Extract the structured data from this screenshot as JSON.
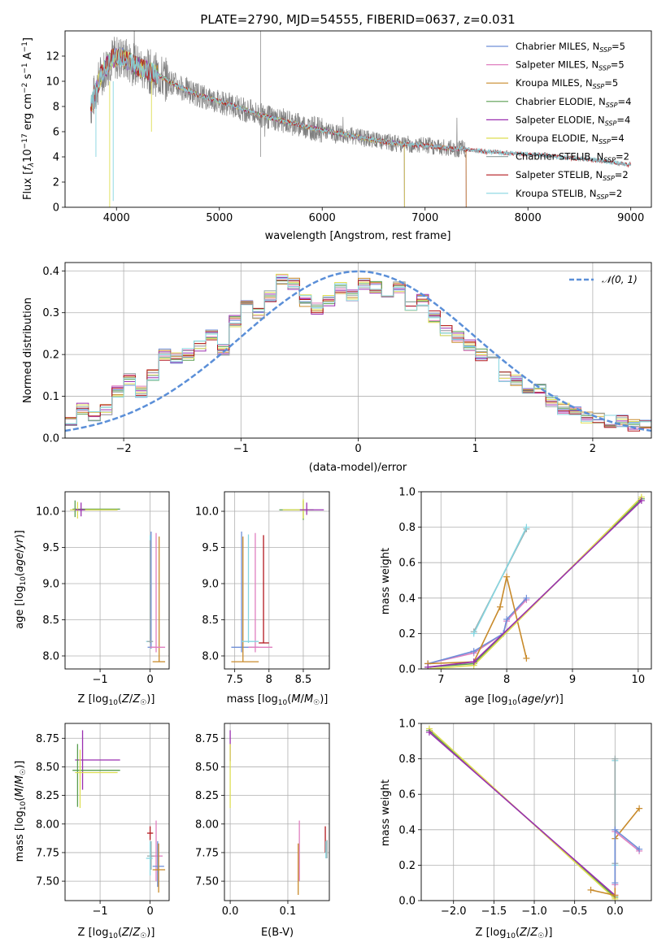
{
  "figure_title": "PLATE=2790, MJD=54555, FIBERID=0637, z=0.031",
  "palette": {
    "Chabrier MILES": "#6f8fd8",
    "Salpeter MILES": "#e07fbf",
    "Kroupa MILES": "#c88a2a",
    "Chabrier ELODIE": "#5a9e50",
    "Salpeter ELODIE": "#9a2fb0",
    "Kroupa ELODIE": "#dede52",
    "Chabrier STELIB": "#9aa8a8",
    "Salpeter STELIB": "#b3191f",
    "Kroupa STELIB": "#86d5e0",
    "data": "#808080",
    "gaussian": "#5b8fd8"
  },
  "chart_data": [
    {
      "id": "spectrum",
      "type": "line",
      "xlabel": "wavelength [Angstrom, rest frame]",
      "xlim": [
        3500,
        9200
      ],
      "ylim": [
        0,
        14
      ],
      "xticks": [
        4000,
        5000,
        6000,
        7000,
        8000,
        9000
      ],
      "yticks": [
        0,
        2,
        4,
        6,
        8,
        10,
        12
      ],
      "grid": false,
      "legend_position": "top-right",
      "legend": [
        "Chabrier MILES, N_SSP=5",
        "Salpeter MILES, N_SSP=5",
        "Kroupa MILES, N_SSP=5",
        "Chabrier ELODIE, N_SSP=4",
        "Salpeter ELODIE, N_SSP=4",
        "Kroupa ELODIE, N_SSP=4",
        "Chabrier STELIB, N_SSP=2",
        "Salpeter STELIB, N_SSP=2",
        "Kroupa STELIB, N_SSP=2"
      ],
      "data_continuum": {
        "x": [
          3750,
          3850,
          3950,
          4050,
          4200,
          4400,
          4600,
          4800,
          5000,
          5200,
          5400,
          5600,
          5800,
          6000,
          6200,
          6400,
          6600,
          6800,
          7000,
          7200,
          7400,
          7600,
          7800,
          8000,
          8200,
          8400,
          8600,
          8800,
          8950
        ],
        "y": [
          8.0,
          10.5,
          11.8,
          11.9,
          11.2,
          10.5,
          9.6,
          8.9,
          8.4,
          7.9,
          7.3,
          6.9,
          6.5,
          6.1,
          5.8,
          5.5,
          5.2,
          5.0,
          4.9,
          4.7,
          4.6,
          4.4,
          4.3,
          4.2,
          4.1,
          3.9,
          3.8,
          3.6,
          3.4
        ]
      },
      "model_end_wavelength": {
        "MILES": 7400,
        "ELODIE": 6800,
        "STELIB": 9000
      }
    },
    {
      "id": "residuals",
      "type": "line",
      "xlabel": "(data-model)/error",
      "ylabel": "Normed distribution",
      "xlim": [
        -2.5,
        2.5
      ],
      "ylim": [
        0,
        0.42
      ],
      "xticks": [
        -2,
        -1,
        0,
        1,
        2
      ],
      "yticks": [
        0.0,
        0.1,
        0.2,
        0.3,
        0.4
      ],
      "grid": true,
      "legend": "𝒩(0, 1)",
      "legend_position": "top-right",
      "bin_width": 0.1,
      "bin_start": -2.5,
      "hist_base": [
        0.04,
        0.03,
        0.07,
        0.03,
        0.05,
        0.08,
        0.07,
        0.1,
        0.11,
        0.09,
        0.14,
        0.13,
        0.11,
        0.18,
        0.15,
        0.18,
        0.2,
        0.17,
        0.19,
        0.23,
        0.2,
        0.26,
        0.22,
        0.28,
        0.25,
        0.27,
        0.21,
        0.29,
        0.28,
        0.23,
        0.33,
        0.26,
        0.3,
        0.29,
        0.34,
        0.31,
        0.38,
        0.32,
        0.37,
        0.33,
        0.33,
        0.36,
        0.31,
        0.39,
        0.33,
        0.38,
        0.36,
        0.36,
        0.34,
        0.35,
        0.37,
        0.32,
        0.36,
        0.34,
        0.33,
        0.29,
        0.36,
        0.3,
        0.32,
        0.31,
        0.33,
        0.25,
        0.29,
        0.31,
        0.26,
        0.3,
        0.24,
        0.28,
        0.22,
        0.23,
        0.2,
        0.23,
        0.18,
        0.19,
        0.15,
        0.17,
        0.14,
        0.19,
        0.11,
        0.14,
        0.12,
        0.13,
        0.09,
        0.13,
        0.07,
        0.09,
        0.06,
        0.1,
        0.05,
        0.09,
        0.05,
        0.08,
        0.04,
        0.07,
        0.04,
        0.06,
        0.03,
        0.05,
        0.03,
        0.04
      ]
    },
    {
      "id": "age_vs_Z",
      "type": "scatter",
      "xlabel": "Z [log10(Z/Z☉)]",
      "ylabel": "age  [log10(age/yr)]",
      "xlim": [
        -1.7,
        0.38
      ],
      "ylim": [
        7.82,
        10.27
      ],
      "xticks": [
        -1,
        0
      ],
      "yticks": [
        8.0,
        8.5,
        9.0,
        9.5,
        10.0
      ],
      "grid": true,
      "crosses": [
        {
          "s": "Chabrier ELODIE",
          "x": -1.5,
          "y": 10.03,
          "xe": [
            -1.55,
            -0.6
          ],
          "ye": [
            9.92,
            10.15
          ]
        },
        {
          "s": "Kroupa ELODIE",
          "x": -1.45,
          "y": 10.02,
          "xe": [
            -1.6,
            -0.65
          ],
          "ye": [
            9.9,
            10.13
          ]
        },
        {
          "s": "Salpeter ELODIE",
          "x": -1.38,
          "y": 10.02,
          "xe": [
            -1.5,
            -1.3
          ],
          "ye": [
            9.93,
            10.12
          ]
        },
        {
          "s": "Chabrier MILES",
          "x": 0.02,
          "y": 8.12,
          "xe": [
            -0.05,
            0.12
          ],
          "ye": [
            8.1,
            9.72
          ]
        },
        {
          "s": "Kroupa MILES",
          "x": 0.18,
          "y": 7.92,
          "xe": [
            0.05,
            0.3
          ],
          "ye": [
            7.92,
            9.65
          ]
        },
        {
          "s": "Salpeter MILES",
          "x": 0.12,
          "y": 8.12,
          "xe": [
            0.0,
            0.3
          ],
          "ye": [
            8.05,
            9.7
          ]
        },
        {
          "s": "Kroupa STELIB",
          "x": 0.0,
          "y": 8.2,
          "xe": [
            -0.08,
            0.05
          ],
          "ye": [
            8.18,
            9.67
          ]
        },
        {
          "s": "Chabrier STELIB",
          "x": 0.0,
          "y": 8.2,
          "xe": [
            -0.06,
            0.06
          ],
          "ye": [
            8.18,
            9.6
          ]
        }
      ]
    },
    {
      "id": "age_vs_mass",
      "type": "scatter",
      "xlabel": "mass [log10(M/M☉)]",
      "xlim": [
        7.35,
        8.88
      ],
      "ylim": [
        7.82,
        10.27
      ],
      "xticks": [
        7.5,
        8.0,
        8.5
      ],
      "yticks": [
        8.0,
        8.5,
        9.0,
        9.5,
        10.0
      ],
      "grid": true,
      "crosses": [
        {
          "s": "Chabrier ELODIE",
          "x": 8.5,
          "y": 10.02,
          "xe": [
            8.15,
            8.65
          ],
          "ye": [
            9.88,
            10.15
          ]
        },
        {
          "s": "Kroupa ELODIE",
          "x": 8.5,
          "y": 10.02,
          "xe": [
            8.2,
            8.6
          ],
          "ye": [
            9.9,
            10.17
          ]
        },
        {
          "s": "Salpeter ELODIE",
          "x": 8.55,
          "y": 10.02,
          "xe": [
            8.45,
            8.8
          ],
          "ye": [
            9.95,
            10.12
          ]
        },
        {
          "s": "Chabrier MILES",
          "x": 7.6,
          "y": 8.12,
          "xe": [
            7.45,
            7.85
          ],
          "ye": [
            8.05,
            9.72
          ]
        },
        {
          "s": "Kroupa MILES",
          "x": 7.62,
          "y": 7.92,
          "xe": [
            7.45,
            7.85
          ],
          "ye": [
            7.92,
            9.65
          ]
        },
        {
          "s": "Salpeter STELIB",
          "x": 7.92,
          "y": 8.18,
          "xe": [
            7.85,
            8.0
          ],
          "ye": [
            8.18,
            9.67
          ]
        },
        {
          "s": "Salpeter MILES",
          "x": 7.8,
          "y": 8.12,
          "xe": [
            7.7,
            8.05
          ],
          "ye": [
            8.05,
            9.7
          ]
        },
        {
          "s": "Kroupa STELIB",
          "x": 7.7,
          "y": 8.2,
          "xe": [
            7.6,
            7.85
          ],
          "ye": [
            8.18,
            9.68
          ]
        }
      ]
    },
    {
      "id": "weight_vs_age",
      "type": "line",
      "xlabel": "age  [log10(age/yr)]",
      "ylabel": "mass weight",
      "xlim": [
        6.7,
        10.2
      ],
      "ylim": [
        0,
        1
      ],
      "xticks": [
        7,
        8,
        9,
        10
      ],
      "yticks": [
        0.0,
        0.2,
        0.4,
        0.6,
        0.8,
        1.0
      ],
      "grid": true,
      "series": [
        {
          "s": "Chabrier STELIB",
          "x": [
            7.5,
            8.3
          ],
          "y": [
            0.21,
            0.79
          ]
        },
        {
          "s": "Kroupa STELIB",
          "x": [
            7.5,
            8.3
          ],
          "y": [
            0.2,
            0.8
          ]
        },
        {
          "s": "Salpeter MILES",
          "x": [
            6.8,
            7.5,
            7.95,
            8.0,
            8.3
          ],
          "y": [
            0.03,
            0.09,
            0.2,
            0.27,
            0.39
          ]
        },
        {
          "s": "Chabrier MILES",
          "x": [
            6.8,
            7.5,
            7.95,
            8.0,
            8.3
          ],
          "y": [
            0.03,
            0.1,
            0.2,
            0.28,
            0.4
          ]
        },
        {
          "s": "Kroupa MILES",
          "x": [
            6.8,
            7.5,
            7.9,
            8.0,
            8.3
          ],
          "y": [
            0.03,
            0.04,
            0.35,
            0.52,
            0.06
          ]
        },
        {
          "s": "Chabrier ELODIE",
          "x": [
            6.8,
            7.5,
            10.05
          ],
          "y": [
            0.01,
            0.03,
            0.96
          ]
        },
        {
          "s": "Kroupa ELODIE",
          "x": [
            6.8,
            7.5,
            10.05
          ],
          "y": [
            0.0,
            0.02,
            0.97
          ]
        },
        {
          "s": "Salpeter ELODIE",
          "x": [
            6.8,
            7.5,
            10.05
          ],
          "y": [
            0.01,
            0.04,
            0.95
          ]
        }
      ]
    },
    {
      "id": "mass_vs_Z",
      "type": "scatter",
      "xlabel": "Z [log10(Z/Z☉)]",
      "ylabel": "mass [log10(M/M☉)]",
      "xlim": [
        -1.7,
        0.38
      ],
      "ylim": [
        7.33,
        8.88
      ],
      "xticks": [
        -1,
        0
      ],
      "yticks": [
        7.5,
        7.75,
        8.0,
        8.25,
        8.5,
        8.75
      ],
      "grid": true,
      "crosses": [
        {
          "s": "Salpeter ELODIE",
          "x": -1.35,
          "y": 8.56,
          "xe": [
            -1.5,
            -0.6
          ],
          "ye": [
            8.3,
            8.82
          ]
        },
        {
          "s": "Chabrier ELODIE",
          "x": -1.45,
          "y": 8.47,
          "xe": [
            -1.55,
            -0.6
          ],
          "ye": [
            8.15,
            8.7
          ]
        },
        {
          "s": "Kroupa ELODIE",
          "x": -1.4,
          "y": 8.45,
          "xe": [
            -1.5,
            -0.65
          ],
          "ye": [
            8.14,
            8.65
          ]
        },
        {
          "s": "Salpeter STELIB",
          "x": 0.0,
          "y": 7.92,
          "xe": [
            -0.06,
            0.06
          ],
          "ye": [
            7.86,
            7.98
          ]
        },
        {
          "s": "Salpeter MILES",
          "x": 0.12,
          "y": 7.72,
          "xe": [
            0.0,
            0.25
          ],
          "ye": [
            7.5,
            8.03
          ]
        },
        {
          "s": "Chabrier STELIB",
          "x": 0.02,
          "y": 7.72,
          "xe": [
            -0.06,
            0.08
          ],
          "ye": [
            7.6,
            7.85
          ]
        },
        {
          "s": "Kroupa STELIB",
          "x": 0.0,
          "y": 7.7,
          "xe": [
            -0.08,
            0.05
          ],
          "ye": [
            7.55,
            7.85
          ]
        },
        {
          "s": "Chabrier MILES",
          "x": 0.15,
          "y": 7.63,
          "xe": [
            0.05,
            0.28
          ],
          "ye": [
            7.45,
            7.85
          ]
        },
        {
          "s": "Kroupa MILES",
          "x": 0.17,
          "y": 7.6,
          "xe": [
            0.05,
            0.3
          ],
          "ye": [
            7.4,
            7.83
          ]
        }
      ]
    },
    {
      "id": "mass_vs_EBV",
      "type": "scatter",
      "xlabel": "E(B-V)",
      "xlim": [
        -0.01,
        0.172
      ],
      "ylim": [
        7.33,
        8.88
      ],
      "xticks": [
        0.0,
        0.1
      ],
      "yticks": [
        7.5,
        7.75,
        8.0,
        8.25,
        8.5,
        8.75
      ],
      "grid": true,
      "crosses": [
        {
          "s": "Salpeter ELODIE",
          "x": 0.0,
          "y": 8.65,
          "xe": [
            0.0,
            0.0
          ],
          "ye": [
            8.55,
            8.82
          ]
        },
        {
          "s": "Kroupa ELODIE",
          "x": 0.0,
          "y": 8.45,
          "xe": [
            0.0,
            0.0
          ],
          "ye": [
            8.14,
            8.7
          ]
        },
        {
          "s": "Salpeter MILES",
          "x": 0.12,
          "y": 7.72,
          "xe": [
            0.12,
            0.12
          ],
          "ye": [
            7.5,
            8.03
          ]
        },
        {
          "s": "Kroupa MILES",
          "x": 0.118,
          "y": 7.6,
          "xe": [
            0.118,
            0.118
          ],
          "ye": [
            7.38,
            7.83
          ]
        },
        {
          "s": "Salpeter STELIB",
          "x": 0.165,
          "y": 7.92,
          "xe": [
            0.165,
            0.165
          ],
          "ye": [
            7.75,
            7.98
          ]
        },
        {
          "s": "Chabrier STELIB",
          "x": 0.168,
          "y": 7.78,
          "xe": [
            0.168,
            0.168
          ],
          "ye": [
            7.7,
            7.86
          ]
        },
        {
          "s": "Kroupa STELIB",
          "x": 0.166,
          "y": 7.78,
          "xe": [
            0.166,
            0.166
          ],
          "ye": [
            7.7,
            7.85
          ]
        }
      ]
    },
    {
      "id": "weight_vs_Z",
      "type": "line",
      "xlabel": "Z [log10(Z/Z☉)]",
      "ylabel": "mass weight",
      "xlim": [
        -2.4,
        0.45
      ],
      "ylim": [
        0,
        1
      ],
      "xticks": [
        -2.0,
        -1.5,
        -1.0,
        -0.5,
        0.0
      ],
      "yticks": [
        0.0,
        0.2,
        0.4,
        0.6,
        0.8,
        1.0
      ],
      "grid": true,
      "series": [
        {
          "s": "Chabrier ELODIE",
          "x": [
            -2.3,
            0.0
          ],
          "y": [
            0.96,
            0.02
          ]
        },
        {
          "s": "Kroupa ELODIE",
          "x": [
            -2.3,
            0.0
          ],
          "y": [
            0.97,
            0.01
          ]
        },
        {
          "s": "Salpeter ELODIE",
          "x": [
            -2.3,
            0.0
          ],
          "y": [
            0.95,
            0.03
          ]
        },
        {
          "s": "Kroupa STELIB",
          "x": [
            0.0,
            0.0
          ],
          "y": [
            0.79,
            0.2
          ]
        },
        {
          "s": "Chabrier STELIB",
          "x": [
            0.0,
            0.0
          ],
          "y": [
            0.8,
            0.21
          ]
        },
        {
          "s": "Kroupa MILES",
          "x": [
            -0.3,
            0.0,
            0.0,
            0.3
          ],
          "y": [
            0.06,
            0.03,
            0.35,
            0.52
          ]
        },
        {
          "s": "Salpeter MILES",
          "x": [
            0.0,
            0.0,
            0.3
          ],
          "y": [
            0.09,
            0.39,
            0.28
          ]
        },
        {
          "s": "Chabrier MILES",
          "x": [
            0.0,
            0.0,
            0.3
          ],
          "y": [
            0.1,
            0.4,
            0.29
          ]
        }
      ]
    }
  ]
}
